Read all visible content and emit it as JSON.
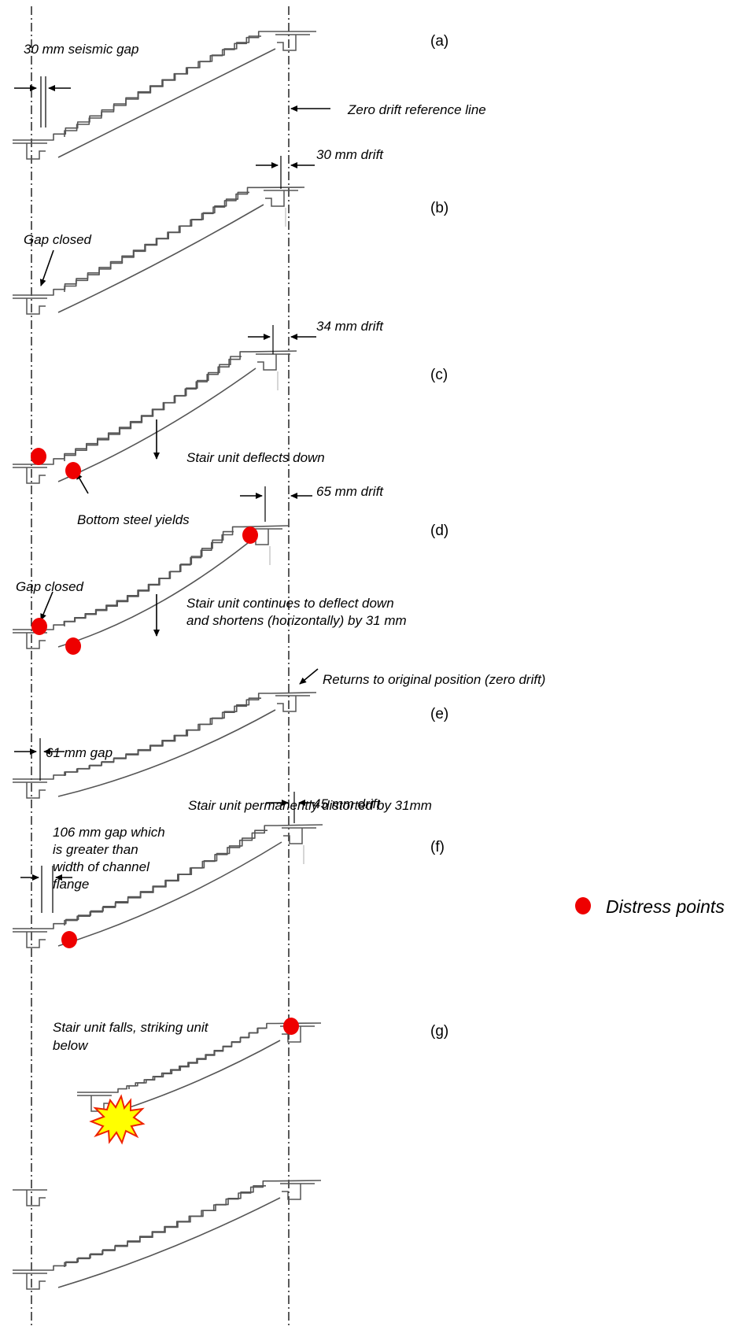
{
  "panels": [
    {
      "label": "(a)",
      "notes": [
        "30 mm seismic gap",
        "Zero drift reference line"
      ]
    },
    {
      "label": "(b)",
      "notes": [
        "30 mm drift",
        "Gap closed"
      ]
    },
    {
      "label": "(c)",
      "notes": [
        "34 mm drift",
        "Stair unit deflects down",
        "Bottom steel yields"
      ]
    },
    {
      "label": "(d)",
      "notes": [
        "65 mm drift",
        "Gap closed",
        "Stair unit continues to deflect down",
        "and shortens (horizontally) by 31 mm"
      ]
    },
    {
      "label": "(e)",
      "notes": [
        "Returns to original position (zero drift)",
        "61 mm gap",
        "Stair unit permanently distorted by 31mm"
      ]
    },
    {
      "label": "(f)",
      "notes": [
        "45 mm drift",
        "106 mm gap which",
        "is greater than",
        "width of channel",
        "flange"
      ]
    },
    {
      "label": "(g)",
      "notes": [
        "Stair unit falls, striking unit",
        "below"
      ]
    }
  ],
  "legend": {
    "label": "Distress points",
    "color": "#ee0000"
  },
  "colors": {
    "distress": "#ee0000",
    "impact_fill": "#ffff00",
    "impact_stroke": "#ee2200",
    "stair_line": "#555555"
  }
}
